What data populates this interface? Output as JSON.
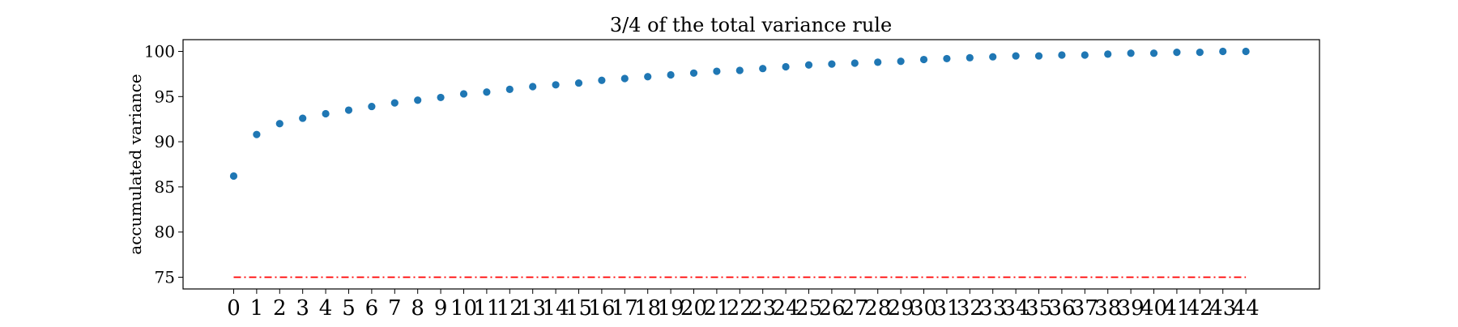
{
  "chart_data": {
    "type": "scatter",
    "title": "3/4 of the total variance rule",
    "xlabel": "",
    "ylabel": "accumulated variance",
    "x": [
      0,
      1,
      2,
      3,
      4,
      5,
      6,
      7,
      8,
      9,
      10,
      11,
      12,
      13,
      14,
      15,
      16,
      17,
      18,
      19,
      20,
      21,
      22,
      23,
      24,
      25,
      26,
      27,
      28,
      29,
      30,
      31,
      32,
      33,
      34,
      35,
      36,
      37,
      38,
      39,
      40,
      41,
      42,
      43,
      44
    ],
    "x_tick_labels": [
      "0",
      "1",
      "2",
      "3",
      "4",
      "5",
      "6",
      "7",
      "8",
      "9",
      "10",
      "11",
      "12",
      "13",
      "14",
      "15",
      "16",
      "17",
      "18",
      "19",
      "20",
      "21",
      "22",
      "23",
      "24",
      "25",
      "26",
      "27",
      "28",
      "29",
      "30",
      "31",
      "32",
      "33",
      "34",
      "35",
      "36",
      "37",
      "38",
      "39",
      "40",
      "41",
      "42",
      "43",
      "44"
    ],
    "y": [
      86.2,
      90.8,
      92.0,
      92.6,
      93.1,
      93.5,
      93.9,
      94.3,
      94.6,
      94.9,
      95.3,
      95.5,
      95.8,
      96.1,
      96.3,
      96.5,
      96.8,
      97.0,
      97.2,
      97.4,
      97.6,
      97.8,
      97.9,
      98.1,
      98.3,
      98.5,
      98.6,
      98.7,
      98.8,
      98.9,
      99.1,
      99.2,
      99.3,
      99.4,
      99.5,
      99.5,
      99.6,
      99.6,
      99.7,
      99.8,
      99.8,
      99.9,
      99.9,
      100.0,
      100.0
    ],
    "y_ticks": [
      75,
      80,
      85,
      90,
      95,
      100
    ],
    "ylim": [
      73.7,
      101.3
    ],
    "xlim": [
      -2.2,
      47.2
    ],
    "threshold": 75,
    "threshold_line_style": "dash-dot",
    "grid": false,
    "colors": {
      "points": "#1f77b4",
      "threshold": "#ff0000",
      "axes": "#000000"
    }
  }
}
